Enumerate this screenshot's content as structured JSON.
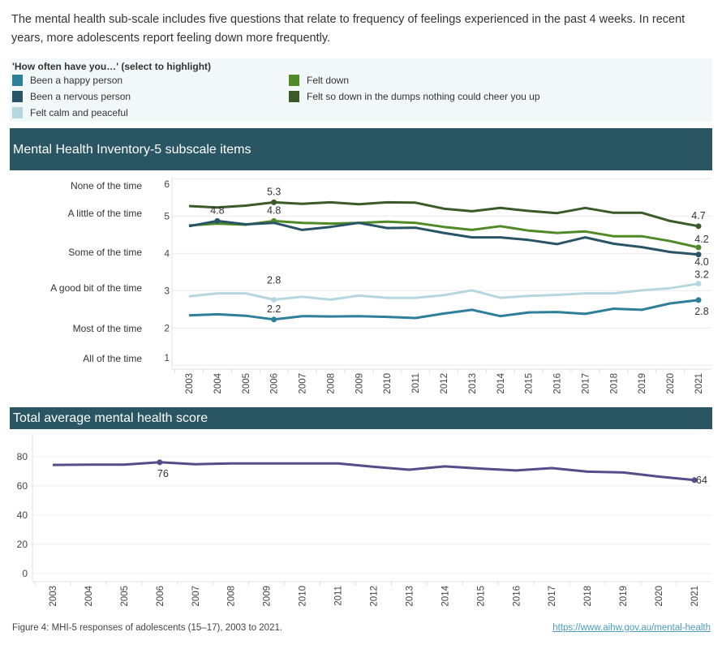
{
  "intro": "The mental health sub-scale includes five questions that relate to frequency of feelings experienced in the past 4 weeks. In recent years, more adolescents report feeling down more frequently.",
  "legend": {
    "title": "'How often have you…' (select to highlight)",
    "items": [
      {
        "label": "Been a happy person",
        "color": "#2e7f9a"
      },
      {
        "label": "Been a nervous person",
        "color": "#285566"
      },
      {
        "label": "Felt calm and peaceful",
        "color": "#b7d7e0"
      },
      {
        "label": "Felt down",
        "color": "#4f8a26"
      },
      {
        "label": "Felt so down in the dumps nothing could cheer you up",
        "color": "#3a5a28"
      }
    ]
  },
  "header1": "Mental Health Inventory-5 subscale items",
  "header2": "Total average mental health score",
  "chart_data": [
    {
      "type": "line",
      "title": "Mental Health Inventory-5 subscale items",
      "x": [
        2003,
        2004,
        2005,
        2006,
        2007,
        2008,
        2009,
        2010,
        2011,
        2012,
        2013,
        2014,
        2015,
        2016,
        2017,
        2018,
        2019,
        2020,
        2021
      ],
      "ylim": [
        1,
        6
      ],
      "yticks": [
        1,
        2,
        3,
        4,
        5,
        6
      ],
      "ycategory_labels": [
        "All of the time",
        "Most of the time",
        "A good bit of the time",
        "Some of the time",
        "A little of the time",
        "None of the time"
      ],
      "grid": true,
      "series": [
        {
          "name": "Felt so down in the dumps nothing could cheer you up",
          "color": "#3a5a28",
          "values": [
            5.27,
            5.23,
            5.28,
            5.37,
            5.33,
            5.37,
            5.32,
            5.37,
            5.36,
            5.2,
            5.13,
            5.22,
            5.14,
            5.08,
            5.22,
            5.09,
            5.09,
            4.87,
            4.73
          ],
          "labels": [
            {
              "year": 2006,
              "text": "5.3",
              "pos": "above"
            },
            {
              "year": 2021,
              "text": "4.7",
              "pos": "above"
            }
          ]
        },
        {
          "name": "Felt down",
          "color": "#4f8a26",
          "values": [
            4.75,
            4.8,
            4.77,
            4.87,
            4.82,
            4.8,
            4.82,
            4.85,
            4.82,
            4.71,
            4.63,
            4.73,
            4.61,
            4.55,
            4.59,
            4.46,
            4.46,
            4.33,
            4.16
          ],
          "labels": [
            {
              "year": 2006,
              "text": "4.8",
              "pos": "above"
            },
            {
              "year": 2021,
              "text": "4.2",
              "pos": "above-right"
            }
          ]
        },
        {
          "name": "Been a nervous person",
          "color": "#285566",
          "values": [
            4.73,
            4.87,
            4.78,
            4.82,
            4.63,
            4.71,
            4.82,
            4.68,
            4.69,
            4.55,
            4.43,
            4.43,
            4.36,
            4.25,
            4.43,
            4.26,
            4.17,
            4.04,
            3.97
          ],
          "labels": [
            {
              "year": 2004,
              "text": "4.8",
              "pos": "above"
            },
            {
              "year": 2021,
              "text": "4.0",
              "pos": "below"
            }
          ]
        },
        {
          "name": "Felt calm and peaceful",
          "color": "#b7d7e0",
          "values": [
            2.85,
            2.93,
            2.93,
            2.76,
            2.84,
            2.76,
            2.87,
            2.81,
            2.81,
            2.88,
            3.01,
            2.81,
            2.86,
            2.89,
            2.93,
            2.93,
            3.01,
            3.07,
            3.19
          ],
          "labels": [
            {
              "year": 2006,
              "text": "2.8",
              "pos": "above-far"
            },
            {
              "year": 2021,
              "text": "3.2",
              "pos": "above"
            }
          ]
        },
        {
          "name": "Been a happy person",
          "color": "#2e7f9a",
          "values": [
            2.34,
            2.37,
            2.33,
            2.23,
            2.32,
            2.31,
            2.32,
            2.3,
            2.27,
            2.39,
            2.49,
            2.32,
            2.42,
            2.43,
            2.38,
            2.52,
            2.49,
            2.66,
            2.75
          ],
          "labels": [
            {
              "year": 2006,
              "text": "2.2",
              "pos": "above"
            },
            {
              "year": 2021,
              "text": "2.8",
              "pos": "below"
            }
          ]
        }
      ]
    },
    {
      "type": "line",
      "title": "Total average mental health score",
      "x": [
        2003,
        2004,
        2005,
        2006,
        2007,
        2008,
        2009,
        2010,
        2011,
        2012,
        2013,
        2014,
        2015,
        2016,
        2017,
        2018,
        2019,
        2020,
        2021
      ],
      "ylim": [
        0,
        80
      ],
      "yticks": [
        0,
        20,
        40,
        60,
        80
      ],
      "grid": true,
      "series": [
        {
          "color": "#574b8a",
          "values": [
            74.4,
            74.6,
            74.6,
            76.2,
            74.9,
            75.4,
            75.4,
            75.4,
            75.4,
            73.1,
            71.1,
            73.4,
            71.9,
            70.6,
            72.2,
            69.8,
            69.2,
            66.4,
            64.0
          ],
          "labels": [
            {
              "year": 2006,
              "text": "76",
              "pos": "below"
            },
            {
              "year": 2021,
              "text": "64",
              "pos": "right"
            }
          ]
        }
      ]
    }
  ],
  "footer": {
    "caption": "Figure 4: MHI-5 responses of adolescents (15–17), 2003 to 2021.",
    "link": "https://www.aihw.gov.au/mental-health"
  }
}
